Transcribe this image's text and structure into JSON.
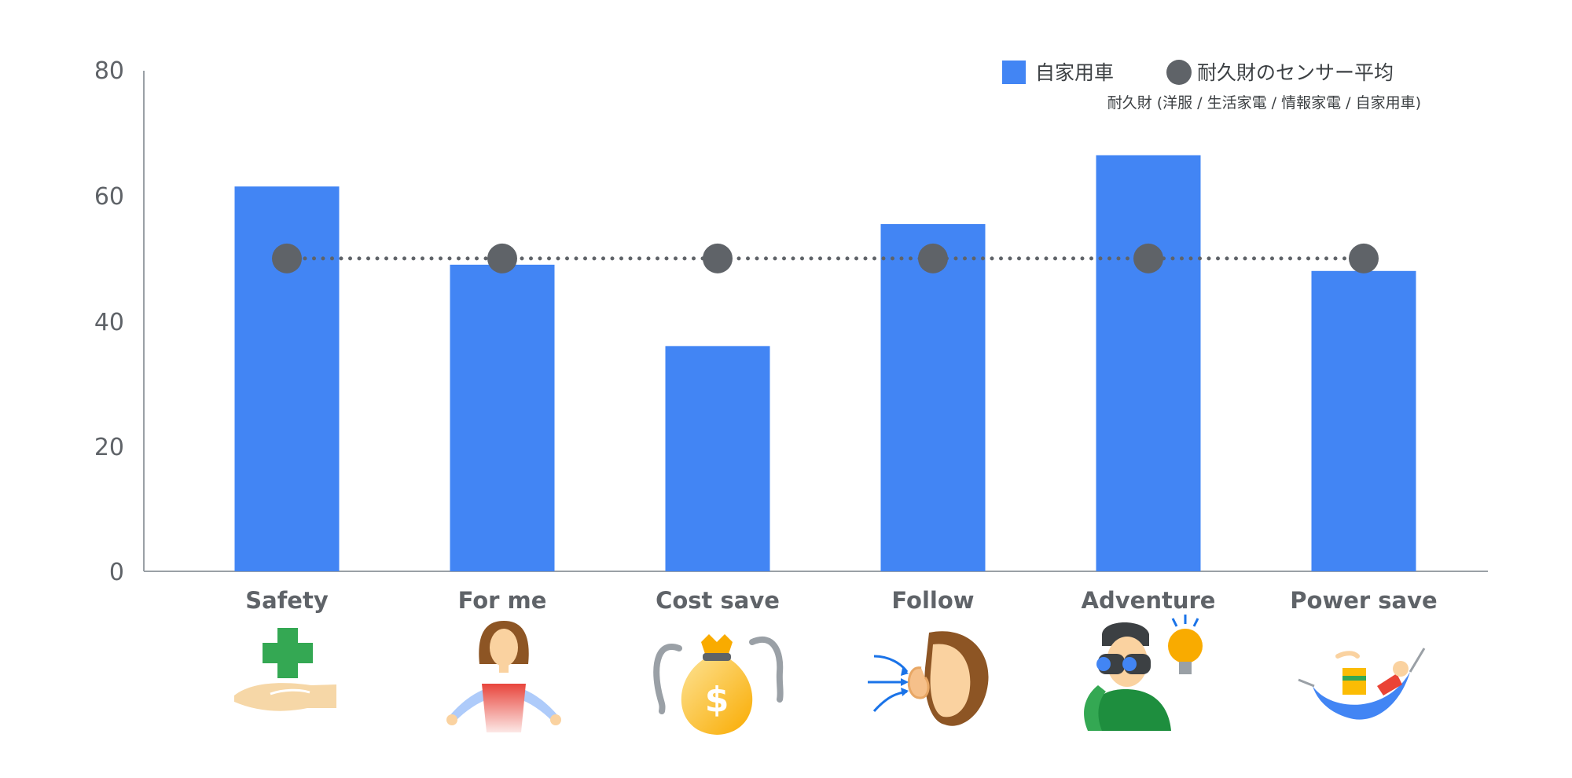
{
  "chart_data": {
    "type": "bar",
    "categories": [
      "Safety",
      "For me",
      "Cost save",
      "Follow",
      "Adventure",
      "Power save"
    ],
    "yticks": [
      "0",
      "20",
      "40",
      "60",
      "80"
    ],
    "ylim": [
      0,
      80
    ],
    "series": [
      {
        "name": "自家用車",
        "kind": "bar",
        "color": "#4285f4",
        "values": [
          61.5,
          49,
          36,
          55.5,
          66.5,
          48
        ]
      },
      {
        "name": "耐久財のセンサー平均",
        "kind": "dot-line",
        "color": "#5f6368",
        "values": [
          50,
          50,
          50,
          50,
          50,
          50
        ]
      }
    ],
    "legend": {
      "placement": "top-right",
      "note": "耐久財 (洋服 / 生活家電 / 情報家電 / 自家用車)"
    },
    "icons": [
      "cross-hand-icon",
      "woman-icon",
      "money-bag-icon",
      "ear-icon",
      "binoculars-icon",
      "hammock-icon"
    ]
  }
}
